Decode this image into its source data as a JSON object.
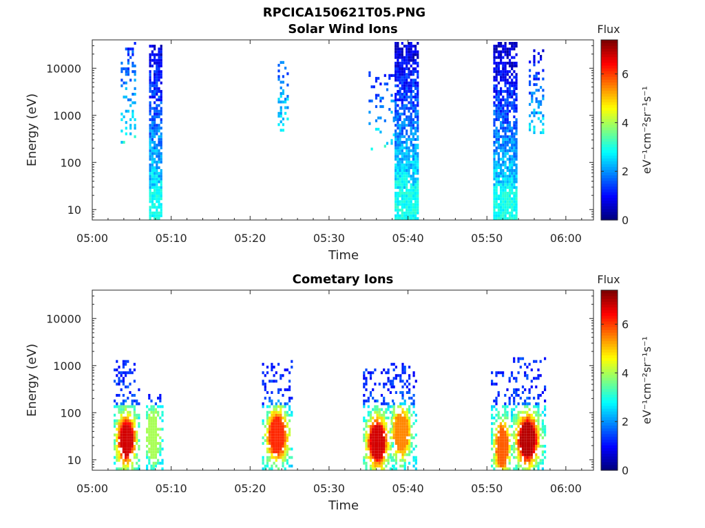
{
  "figure": {
    "title": "RPCICA150621T05.PNG"
  },
  "chart_data": [
    {
      "type": "heatmap",
      "title": "Solar Wind Ions",
      "xlabel": "Time",
      "ylabel": "Energy (eV)",
      "x_tick_labels": [
        "05:00",
        "05:10",
        "05:20",
        "05:30",
        "05:40",
        "05:50",
        "06:00"
      ],
      "x_range_minutes": [
        0,
        63.5
      ],
      "y_scale": "log",
      "y_range": [
        6,
        40000
      ],
      "y_tick_values": [
        10,
        100,
        1000,
        10000
      ],
      "y_tick_labels": [
        "10",
        "100",
        "1000",
        "10000"
      ],
      "colorbar": {
        "title": "Flux",
        "label": "eV⁻¹cm⁻²sr⁻¹s⁻¹",
        "range": [
          0,
          7.4
        ],
        "tick_values": [
          0,
          2,
          4,
          6
        ],
        "tick_labels": [
          "0",
          "2",
          "4",
          "6"
        ],
        "colormap": "jet"
      },
      "bursts": [
        {
          "t": [
            3.6,
            5.4
          ],
          "e": [
            250,
            35000
          ],
          "v": [
            1.2,
            2.8
          ],
          "d": 0.3
        },
        {
          "t": [
            7.2,
            8.8
          ],
          "e": [
            6,
            30000
          ],
          "v": [
            0.6,
            3.0
          ],
          "d": 0.75
        },
        {
          "t": [
            23.5,
            24.9
          ],
          "e": [
            450,
            14000
          ],
          "v": [
            1.5,
            2.8
          ],
          "d": 0.3
        },
        {
          "t": [
            35.0,
            38.5
          ],
          "e": [
            180,
            8000
          ],
          "v": [
            1.0,
            2.8
          ],
          "d": 0.15
        },
        {
          "t": [
            38.3,
            41.3
          ],
          "e": [
            6,
            38000
          ],
          "v": [
            0.5,
            3.2
          ],
          "d": 0.75
        },
        {
          "t": [
            50.8,
            53.8
          ],
          "e": [
            6,
            38000
          ],
          "v": [
            0.4,
            3.0
          ],
          "d": 0.75
        },
        {
          "t": [
            55.3,
            57.2
          ],
          "e": [
            400,
            25000
          ],
          "v": [
            0.6,
            2.6
          ],
          "d": 0.35
        }
      ]
    },
    {
      "type": "heatmap",
      "title": "Cometary Ions",
      "xlabel": "Time",
      "ylabel": "Energy (eV)",
      "x_tick_labels": [
        "05:00",
        "05:10",
        "05:20",
        "05:30",
        "05:40",
        "05:50",
        "06:00"
      ],
      "x_range_minutes": [
        0,
        63.5
      ],
      "y_scale": "log",
      "y_range": [
        6,
        40000
      ],
      "y_tick_values": [
        10,
        100,
        1000,
        10000
      ],
      "y_tick_labels": [
        "10",
        "100",
        "1000",
        "10000"
      ],
      "colorbar": {
        "title": "Flux",
        "label": "eV⁻¹cm⁻²sr⁻¹s⁻¹",
        "range": [
          0,
          7.4
        ],
        "tick_values": [
          0,
          2,
          4,
          6
        ],
        "tick_labels": [
          "0",
          "2",
          "4",
          "6"
        ],
        "colormap": "jet"
      },
      "clusters": [
        {
          "t": [
            2.7,
            6.0
          ],
          "peak_t": 4.2,
          "peak_e": 25,
          "peak_v": 6.8,
          "e_top": 1300
        },
        {
          "t": [
            6.8,
            9.0
          ],
          "peak_t": 7.6,
          "peak_e": 30,
          "peak_v": 4.0,
          "e_top": 250
        },
        {
          "t": [
            21.5,
            25.2
          ],
          "peak_t": 23.3,
          "peak_e": 30,
          "peak_v": 6.2,
          "e_top": 1300
        },
        {
          "t": [
            34.3,
            38.0
          ],
          "peak_t": 36.0,
          "peak_e": 22,
          "peak_v": 6.8,
          "e_top": 800
        },
        {
          "t": [
            37.8,
            41.0
          ],
          "peak_t": 39.0,
          "peak_e": 35,
          "peak_v": 5.5,
          "e_top": 1000
        },
        {
          "t": [
            50.5,
            53.2
          ],
          "peak_t": 51.8,
          "peak_e": 18,
          "peak_v": 5.8,
          "e_top": 700
        },
        {
          "t": [
            53.3,
            57.3
          ],
          "peak_t": 55.0,
          "peak_e": 25,
          "peak_v": 7.0,
          "e_top": 1400
        }
      ]
    }
  ]
}
